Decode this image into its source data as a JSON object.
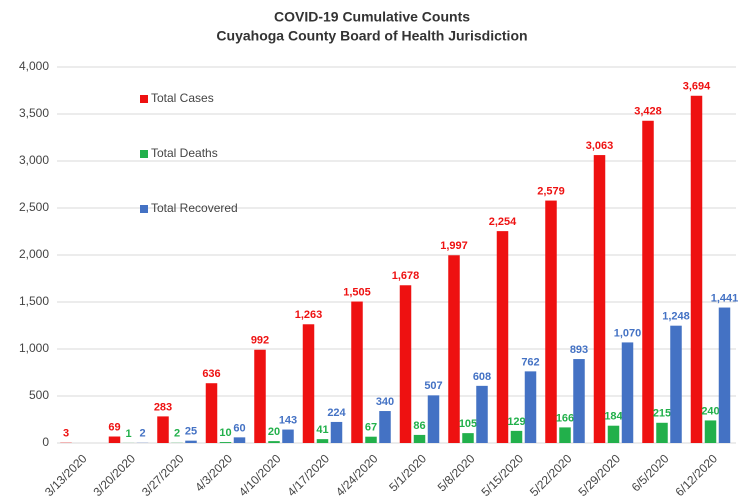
{
  "chart_data": {
    "type": "bar",
    "title": "COVID-19 Cumulative Counts",
    "subtitle": "Cuyahoga County Board of Health Jurisdiction",
    "categories": [
      "3/13/2020",
      "3/20/2020",
      "3/27/2020",
      "4/3/2020",
      "4/10/2020",
      "4/17/2020",
      "4/24/2020",
      "5/1/2020",
      "5/8/2020",
      "5/15/2020",
      "5/22/2020",
      "5/29/2020",
      "6/5/2020",
      "6/12/2020"
    ],
    "series": [
      {
        "name": "Total Cases",
        "color": "#ee1111",
        "values": [
          3,
          69,
          283,
          636,
          992,
          1263,
          1505,
          1678,
          1997,
          2254,
          2579,
          3063,
          3428,
          3694
        ],
        "value_labels": [
          "3",
          "69",
          "283",
          "636",
          "992",
          "1,263",
          "1,505",
          "1,678",
          "1,997",
          "2,254",
          "2,579",
          "3,063",
          "3,428",
          "3,694"
        ]
      },
      {
        "name": "Total Deaths",
        "color": "#22b04b",
        "values": [
          null,
          1,
          2,
          10,
          20,
          41,
          67,
          86,
          105,
          129,
          166,
          184,
          215,
          240
        ],
        "value_labels": [
          null,
          "1",
          "2",
          "10",
          "20",
          "41",
          "67",
          "86",
          "105",
          "129",
          "166",
          "184",
          "215",
          "240"
        ]
      },
      {
        "name": "Total Recovered",
        "color": "#4472c4",
        "values": [
          null,
          2,
          25,
          60,
          143,
          224,
          340,
          507,
          608,
          762,
          893,
          1070,
          1248,
          1441
        ],
        "value_labels": [
          null,
          "2",
          "25",
          "60",
          "143",
          "224",
          "340",
          "507",
          "608",
          "762",
          "893",
          "1,070",
          "1,248",
          "1,441"
        ]
      }
    ],
    "ylim": [
      0,
      4000
    ],
    "yticks": [
      0,
      500,
      {
        "value": 1000,
        "label": "1,000"
      },
      {
        "value": 1500,
        "label": "1,500"
      },
      {
        "value": 2000,
        "label": "2,000"
      },
      {
        "value": 2500,
        "label": "2,500"
      },
      {
        "value": 3000,
        "label": "3,000"
      },
      {
        "value": 3500,
        "label": "3,500"
      },
      {
        "value": 4000,
        "label": "4,000"
      }
    ],
    "grid": true,
    "legend": "upper left"
  }
}
